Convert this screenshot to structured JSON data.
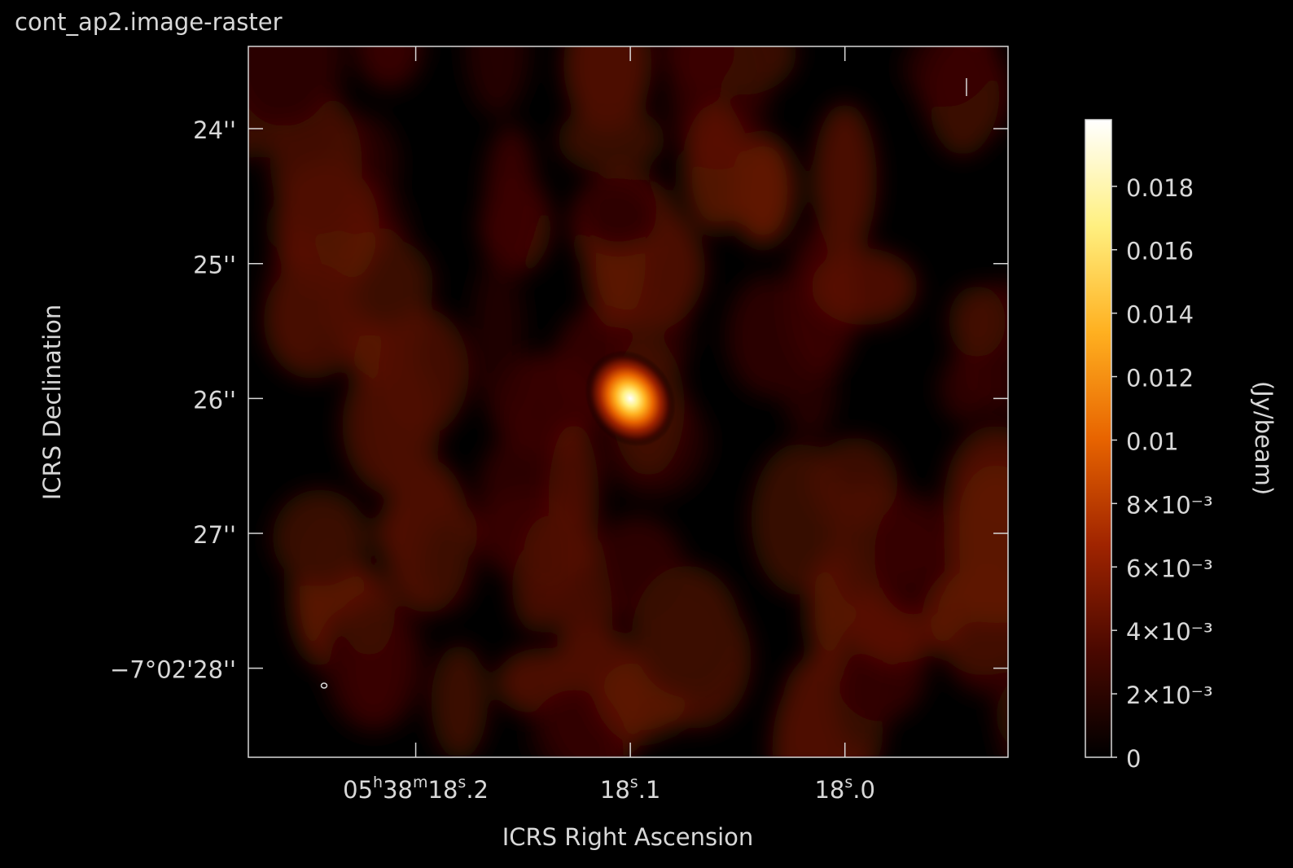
{
  "chart_data": {
    "type": "raster",
    "title": "cont_ap2.image-raster",
    "x_label": "ICRS Right Ascension",
    "y_label": "ICRS Declination",
    "colorbar_label": "(Jy/beam)",
    "xlim": [
      18.278,
      17.924
    ],
    "xticks": [
      {
        "value": 18.2,
        "label": "05h38m18s.2"
      },
      {
        "value": 18.1,
        "label": "18s.1"
      },
      {
        "value": 18.0,
        "label": "18s.0"
      }
    ],
    "ylim": [
      -25348.66,
      -25343.39
    ],
    "yticks": [
      {
        "value": -25344,
        "label": "24''"
      },
      {
        "value": -25345,
        "label": "25''"
      },
      {
        "value": -25346,
        "label": "26''"
      },
      {
        "value": -25347,
        "label": "27''"
      },
      {
        "value": -25348,
        "label": "−7°02'28''"
      }
    ],
    "zlim": [
      0,
      0.0201
    ],
    "zticks": [
      0,
      {
        "value": 0.002,
        "label": "2×10⁻³"
      },
      {
        "value": 0.004,
        "label": "4×10⁻³"
      },
      {
        "value": 0.006,
        "label": "6×10⁻³"
      },
      {
        "value": 0.008,
        "label": "8×10⁻³"
      },
      0.01,
      0.012,
      0.014,
      0.016,
      0.018
    ],
    "colormap": [
      "#000000",
      "#4a0800",
      "#a02400",
      "#e86400",
      "#ffb020",
      "#fff080",
      "#ffffff"
    ],
    "source": {
      "ra": 18.1,
      "dec": -25346,
      "peak": 0.0195
    }
  }
}
